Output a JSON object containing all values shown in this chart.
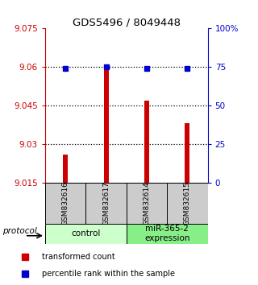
{
  "title": "GDS5496 / 8049448",
  "samples": [
    "GSM832616",
    "GSM832617",
    "GSM832614",
    "GSM832615"
  ],
  "transformed_counts": [
    9.026,
    9.061,
    9.047,
    9.038
  ],
  "percentile_ranks": [
    74,
    75,
    74,
    74
  ],
  "ylim_left": [
    9.015,
    9.075
  ],
  "ylim_right": [
    0,
    100
  ],
  "yticks_left": [
    9.015,
    9.03,
    9.045,
    9.06,
    9.075
  ],
  "yticks_right": [
    0,
    25,
    50,
    75,
    100
  ],
  "ytick_labels_left": [
    "9.015",
    "9.03",
    "9.045",
    "9.06",
    "9.075"
  ],
  "ytick_labels_right": [
    "0",
    "25",
    "50",
    "75",
    "100%"
  ],
  "bar_color": "#cc0000",
  "dot_color": "#0000cc",
  "bar_bottom": 9.015,
  "groups": [
    {
      "label": "control",
      "indices": [
        0,
        1
      ],
      "color": "#ccffcc"
    },
    {
      "label": "miR-365-2\nexpression",
      "indices": [
        2,
        3
      ],
      "color": "#88ee88"
    }
  ],
  "legend_bar_label": "transformed count",
  "legend_dot_label": "percentile rank within the sample",
  "protocol_label": "protocol",
  "sample_box_color": "#cccccc",
  "bar_width": 0.12
}
